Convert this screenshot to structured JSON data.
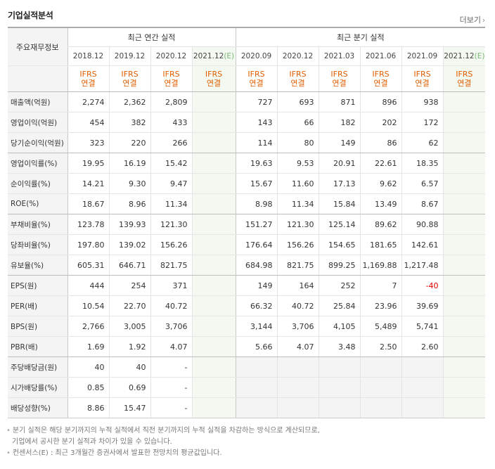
{
  "section_title": "기업실적분석",
  "more_label": "더보기",
  "more_icon": "chevron-right-icon",
  "header": {
    "row_label": "주요재무정보",
    "annual_group": "최근 연간 실적",
    "quarter_group": "최근 분기 실적",
    "annual_periods": [
      "2018.12",
      "2019.12",
      "2020.12",
      "2021.12"
    ],
    "quarter_periods": [
      "2020.09",
      "2020.12",
      "2021.03",
      "2021.06",
      "2021.09",
      "2021.12"
    ],
    "estimate_mark": "(E)",
    "basis_top": "IFRS",
    "basis_bottom": "연결"
  },
  "rows": [
    {
      "label": "매출액(억원)",
      "annual": [
        "2,274",
        "2,362",
        "2,809",
        ""
      ],
      "quarter": [
        "727",
        "693",
        "871",
        "896",
        "938",
        ""
      ]
    },
    {
      "label": "영업이익(억원)",
      "annual": [
        "454",
        "382",
        "433",
        ""
      ],
      "quarter": [
        "143",
        "66",
        "182",
        "202",
        "172",
        ""
      ]
    },
    {
      "label": "당기순이익(억원)",
      "annual": [
        "323",
        "220",
        "266",
        ""
      ],
      "quarter": [
        "114",
        "80",
        "149",
        "86",
        "62",
        ""
      ]
    },
    {
      "label": "영업이익률(%)",
      "annual": [
        "19.95",
        "16.19",
        "15.42",
        ""
      ],
      "quarter": [
        "19.63",
        "9.53",
        "20.91",
        "22.61",
        "18.35",
        ""
      ]
    },
    {
      "label": "순이익률(%)",
      "annual": [
        "14.21",
        "9.30",
        "9.47",
        ""
      ],
      "quarter": [
        "15.67",
        "11.60",
        "17.13",
        "9.62",
        "6.57",
        ""
      ]
    },
    {
      "label": "ROE(%)",
      "annual": [
        "18.67",
        "8.96",
        "11.34",
        ""
      ],
      "quarter": [
        "8.98",
        "11.34",
        "15.84",
        "13.49",
        "8.67",
        ""
      ]
    },
    {
      "label": "부채비율(%)",
      "annual": [
        "123.78",
        "139.93",
        "121.30",
        ""
      ],
      "quarter": [
        "151.27",
        "121.30",
        "125.14",
        "89.62",
        "90.88",
        ""
      ]
    },
    {
      "label": "당좌비율(%)",
      "annual": [
        "197.80",
        "139.02",
        "156.26",
        ""
      ],
      "quarter": [
        "176.64",
        "156.26",
        "154.65",
        "181.65",
        "142.61",
        ""
      ]
    },
    {
      "label": "유보율(%)",
      "annual": [
        "605.31",
        "646.71",
        "821.75",
        ""
      ],
      "quarter": [
        "684.98",
        "821.75",
        "899.25",
        "1,169.88",
        "1,217.48",
        ""
      ]
    },
    {
      "label": "EPS(원)",
      "annual": [
        "444",
        "254",
        "371",
        ""
      ],
      "quarter": [
        "149",
        "164",
        "252",
        "7",
        "-40",
        ""
      ]
    },
    {
      "label": "PER(배)",
      "annual": [
        "10.54",
        "22.70",
        "40.72",
        ""
      ],
      "quarter": [
        "66.32",
        "40.72",
        "25.84",
        "23.96",
        "39.69",
        ""
      ]
    },
    {
      "label": "BPS(원)",
      "annual": [
        "2,766",
        "3,005",
        "3,706",
        ""
      ],
      "quarter": [
        "3,144",
        "3,706",
        "4,105",
        "5,489",
        "5,741",
        ""
      ]
    },
    {
      "label": "PBR(배)",
      "annual": [
        "1.69",
        "1.92",
        "4.07",
        ""
      ],
      "quarter": [
        "5.66",
        "4.07",
        "3.48",
        "2.50",
        "2.60",
        ""
      ]
    },
    {
      "label": "주당배당금(원)",
      "annual": [
        "40",
        "40",
        "-",
        ""
      ],
      "quarter": [
        "",
        "",
        "",
        "",
        "",
        ""
      ]
    },
    {
      "label": "시가배당률(%)",
      "annual": [
        "0.85",
        "0.69",
        "-",
        ""
      ],
      "quarter": [
        "",
        "",
        "",
        "",
        "",
        ""
      ]
    },
    {
      "label": "배당성향(%)",
      "annual": [
        "8.86",
        "15.47",
        "-",
        ""
      ],
      "quarter": [
        "",
        "",
        "",
        "",
        "",
        ""
      ]
    }
  ],
  "notes": [
    "분기 실적은 해당 분기까지의 누적 실적에서 직전 분기까지의 누적 실적을 차감하는 방식으로 계산되므로,",
    "기업에서 공시한 분기 실적과 차이가 있을 수 있습니다.",
    "컨센서스(E) : 최근 3개월간 증권사에서 발표한 전망치의 평균값입니다."
  ],
  "colors": {
    "accent_orange": "#e05e00",
    "estimate_bg": "#f3f8f1",
    "negative": "#e00000"
  }
}
